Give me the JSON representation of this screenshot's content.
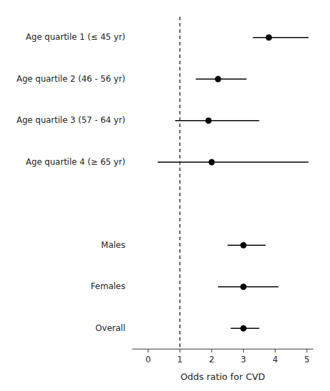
{
  "chart_data": {
    "type": "forest",
    "categories": [
      "Age quartile 1 (≤ 45 yr)",
      "Age quartile 2 (46 - 56 yr)",
      "Age quartile 3 (57 - 64 yr)",
      "Age quartile 4 (≥ 65 yr)",
      "Males",
      "Females",
      "Overall"
    ],
    "values": [
      3.8,
      2.2,
      1.9,
      2.0,
      3.0,
      3.0,
      3.0
    ],
    "ci_low": [
      3.3,
      1.5,
      0.85,
      0.3,
      2.5,
      2.2,
      2.6
    ],
    "ci_high": [
      5.05,
      3.1,
      3.5,
      5.05,
      3.7,
      4.1,
      3.5
    ],
    "reference_x": 1.0,
    "xlabel": "Odds ratio for CVD",
    "xlim": [
      -0.5,
      5.2
    ],
    "xticks": [
      0,
      1,
      2,
      3,
      4,
      5
    ],
    "color": "#000000",
    "grid": false
  }
}
